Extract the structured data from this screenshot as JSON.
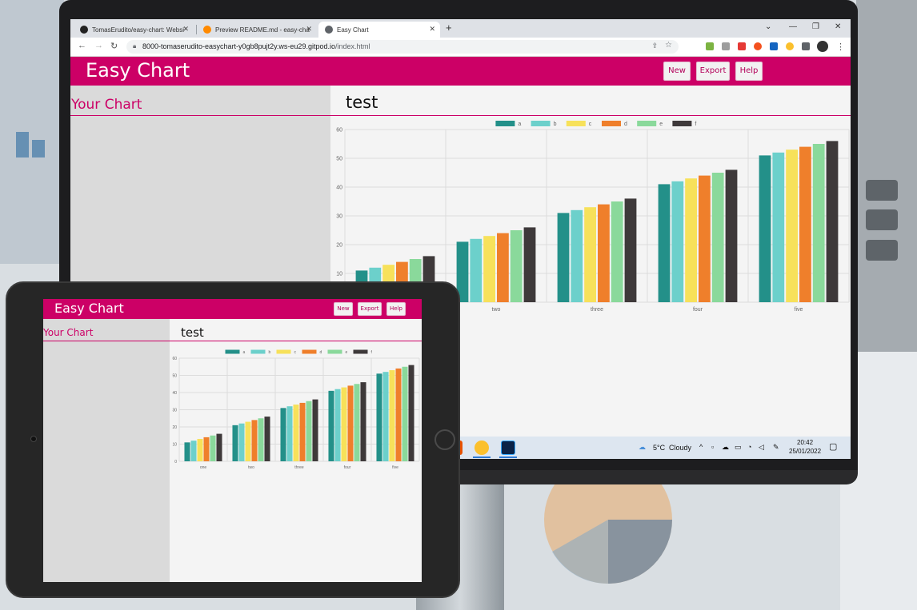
{
  "browser": {
    "tabs": [
      {
        "title": "TomasErudito/easy-chart: Websi",
        "icon": "github-icon"
      },
      {
        "title": "Preview README.md - easy-char",
        "icon": "gitpod-icon"
      },
      {
        "title": "Easy Chart",
        "icon": "globe-icon"
      }
    ],
    "new_tab_label": "+",
    "url_host": "8000-tomaserudito-easychart-y0gb8pujt2y.ws-eu29.gitpod.io",
    "url_path": "/index.html"
  },
  "app": {
    "brand": "Easy Chart",
    "buttons": {
      "new": "New",
      "export": "Export",
      "help": "Help"
    },
    "sidebar_title": "Your Chart",
    "chart_title": "test",
    "accent_color": "#cc0066"
  },
  "taskbar": {
    "weather_temp": "5°C",
    "weather_condition": "Cloudy",
    "time": "20:42",
    "date": "25/01/2022"
  },
  "chart_data": {
    "type": "bar",
    "title": "",
    "xlabel": "",
    "ylabel": "",
    "categories": [
      "one",
      "two",
      "three",
      "four",
      "five"
    ],
    "ylim": [
      0,
      60
    ],
    "yticks": [
      0,
      10,
      20,
      30,
      40,
      50,
      60
    ],
    "grid": true,
    "legend_position": "top-center",
    "series": [
      {
        "name": "a",
        "color": "#239089",
        "values": [
          11,
          21,
          31,
          41,
          51
        ]
      },
      {
        "name": "b",
        "color": "#6cd0cb",
        "values": [
          12,
          22,
          32,
          42,
          52
        ]
      },
      {
        "name": "c",
        "color": "#f7e15a",
        "values": [
          13,
          23,
          33,
          43,
          53
        ]
      },
      {
        "name": "d",
        "color": "#ef7f2b",
        "values": [
          14,
          24,
          34,
          44,
          54
        ]
      },
      {
        "name": "e",
        "color": "#8ad99b",
        "values": [
          15,
          25,
          35,
          45,
          55
        ]
      },
      {
        "name": "f",
        "color": "#3e393a",
        "values": [
          16,
          26,
          36,
          46,
          56
        ]
      }
    ]
  }
}
